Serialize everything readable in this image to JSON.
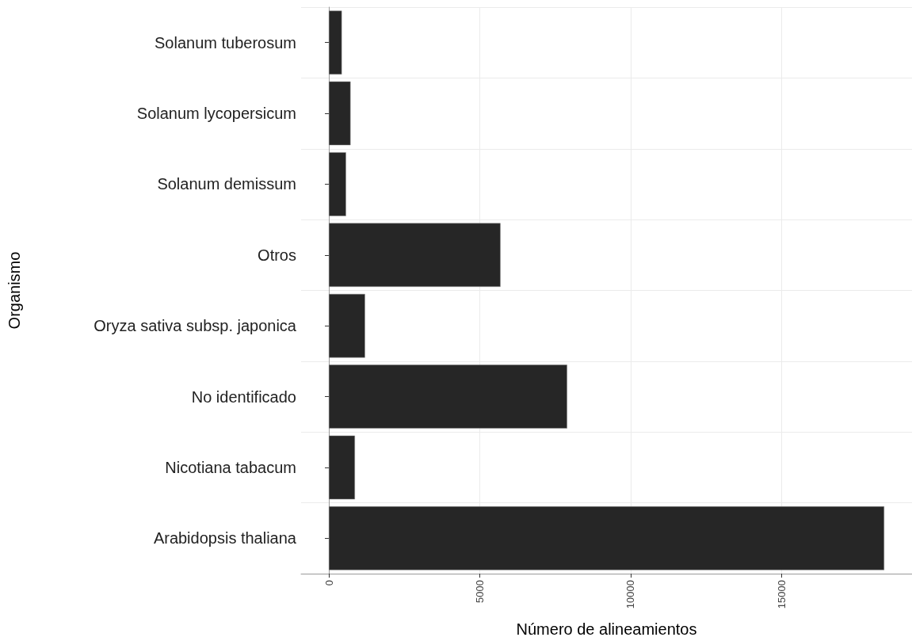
{
  "chart_data": {
    "type": "bar",
    "orientation": "horizontal",
    "xlabel": "Número de alineamientos",
    "ylabel": "Organismo",
    "categories": [
      "Solanum tuberosum",
      "Solanum lycopersicum",
      "Solanum demissum",
      "Otros",
      "Oryza sativa subsp. japonica",
      "No identificado",
      "Nicotiana tabacum",
      "Arabidopsis thaliana"
    ],
    "values": [
      430,
      720,
      570,
      5690,
      1200,
      7900,
      865,
      18410
    ],
    "color": "#262626",
    "xlim": [
      -920,
      19330
    ],
    "xticks": [
      0,
      5000,
      10000,
      15000
    ],
    "grid": true
  }
}
